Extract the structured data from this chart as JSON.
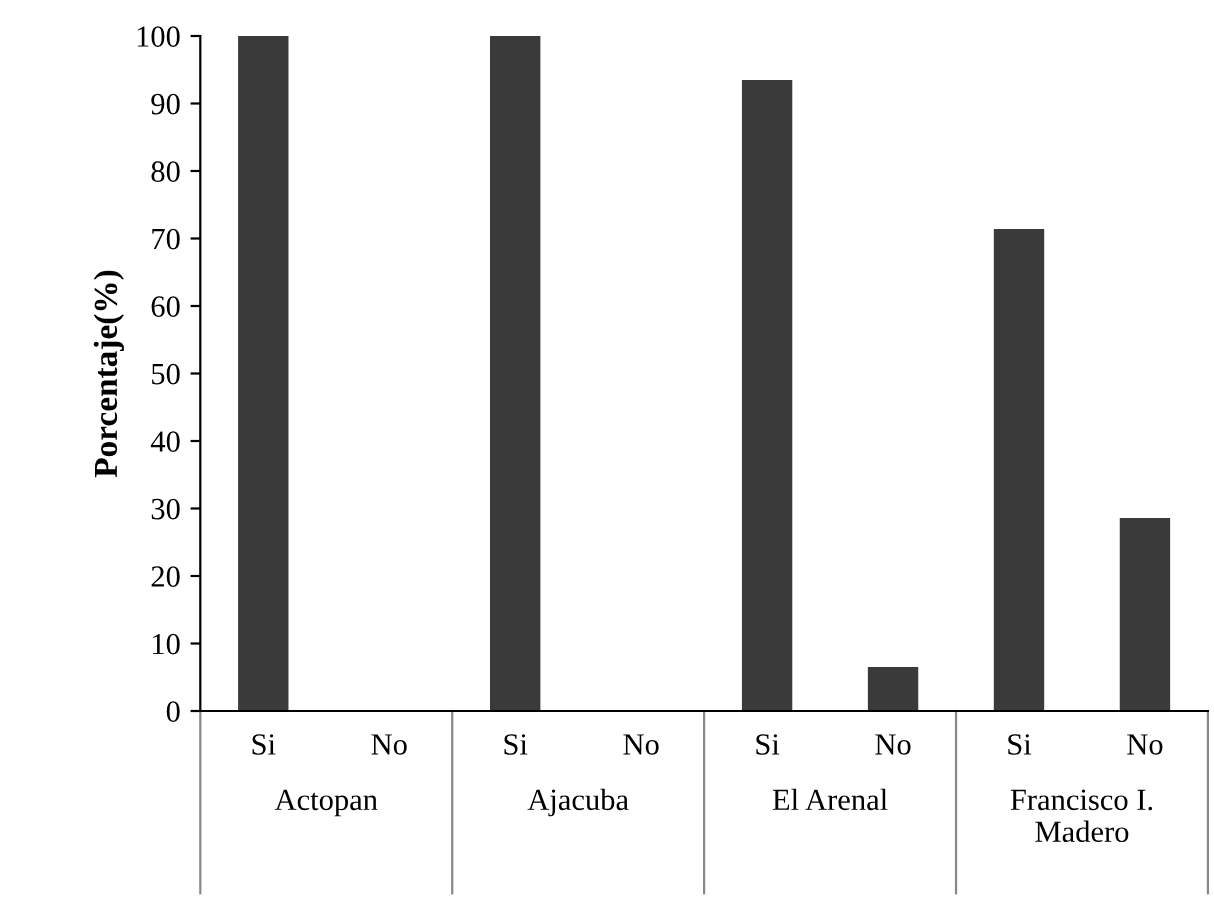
{
  "chart_data": {
    "type": "bar",
    "categories": [
      "Si",
      "No",
      "Si",
      "No",
      "Si",
      "No",
      "Si",
      "No"
    ],
    "values": [
      100,
      0,
      100,
      0,
      93.5,
      6.5,
      71.4,
      28.6
    ],
    "color": "#3a3a3a",
    "ylabel": "Porcentaje(%)",
    "ylim": [
      0,
      100
    ],
    "yticks": [
      0,
      10,
      20,
      30,
      40,
      50,
      60,
      70,
      80,
      90,
      100
    ],
    "annotations": [
      "Actopan",
      "Ajacuba",
      "El Arenal",
      "Francisco I.\nMadero"
    ],
    "grid": false,
    "legend": false
  }
}
